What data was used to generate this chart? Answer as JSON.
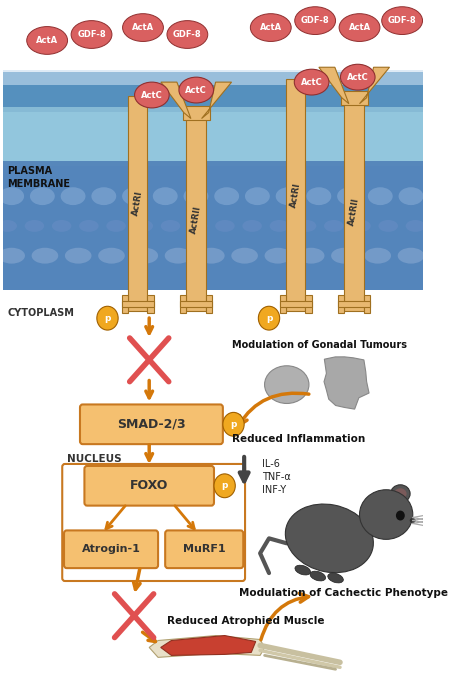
{
  "bg_color": "#ffffff",
  "receptor_color": "#E8B870",
  "ligand_color": "#D96060",
  "box_color": "#F5C070",
  "box_edge_color": "#C87820",
  "arrow_color": "#D4780A",
  "cross_color": "#E05050",
  "p_circle_color": "#F0A820",
  "plasma_membrane_label": "PLASMA\nMEMBRANE",
  "cytoplasm_label": "CYTOPLASM",
  "nucleus_label": "NUCLEUS",
  "smad_label": "SMAD-2/3",
  "foxo_label": "FOXO",
  "atrogin_label": "Atrogin-1",
  "murf_label": "MuRF1",
  "gonadal_label": "Modulation of Gonadal Tumours",
  "inflammation_label": "Reduced Inflammation",
  "il6_label": "IL-6",
  "tnf_label": "TNF-α",
  "inf_label": "INF-Y",
  "cachectic_label": "Modulation of Cachectic Phenotype",
  "muscle_label": "Reduced Atrophied Muscle"
}
